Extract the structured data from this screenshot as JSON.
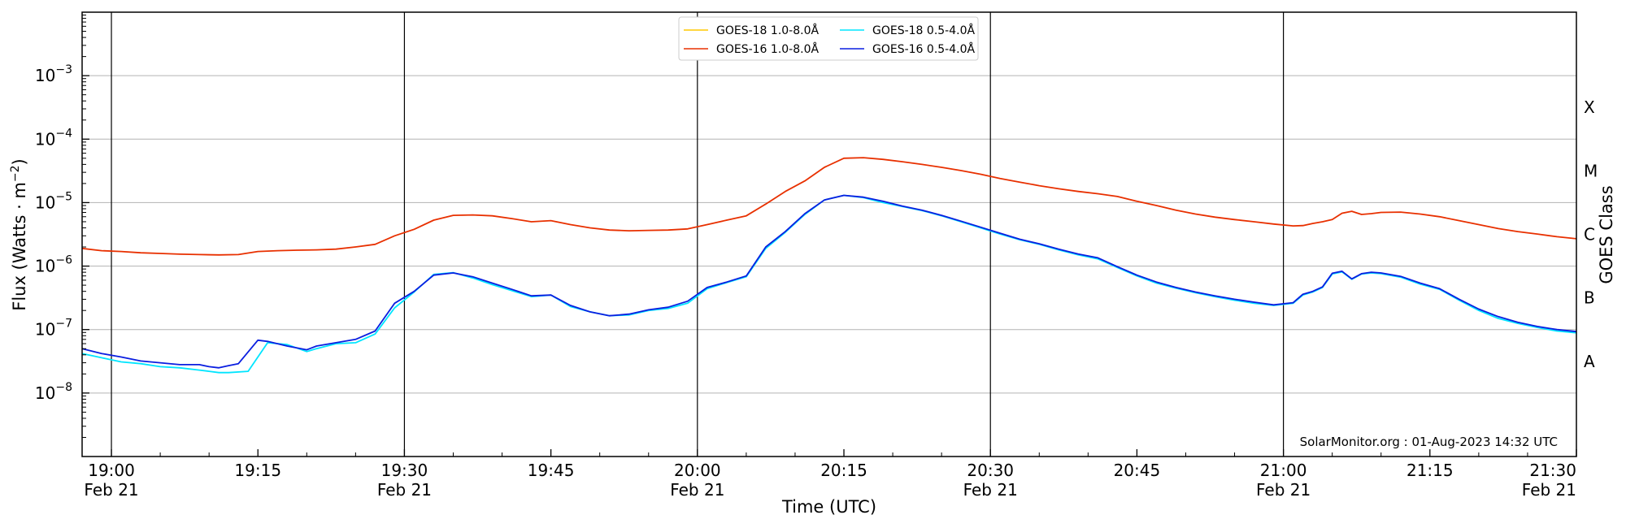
{
  "chart_data": {
    "type": "line",
    "xlabel": "Time (UTC)",
    "ylabel": "Flux (Watts · m",
    "ylabel_sup": "−2",
    "ylabel_close": ")",
    "right_label": "GOES Class",
    "scale": "log",
    "ylim": [
      1e-09,
      0.01
    ],
    "xlim": [
      "2023-02-21T18:57",
      "2023-02-21T21:30"
    ],
    "grid": "horizontal",
    "legend_position": "top-center",
    "credit": "SolarMonitor.org : 01-Aug-2023 14:32 UTC",
    "y_ticks": [
      {
        "value": 1e-08,
        "base": "10",
        "exp": "−8"
      },
      {
        "value": 1e-07,
        "base": "10",
        "exp": "−7"
      },
      {
        "value": 1e-06,
        "base": "10",
        "exp": "−6"
      },
      {
        "value": 1e-05,
        "base": "10",
        "exp": "−5"
      },
      {
        "value": 0.0001,
        "base": "10",
        "exp": "−4"
      },
      {
        "value": 0.001,
        "base": "10",
        "exp": "−3"
      }
    ],
    "x_ticks": [
      {
        "time": "19:00",
        "line1": "19:00",
        "line2": "Feb 21"
      },
      {
        "time": "19:15",
        "line1": "19:15",
        "line2": ""
      },
      {
        "time": "19:30",
        "line1": "19:30",
        "line2": "Feb 21"
      },
      {
        "time": "19:45",
        "line1": "19:45",
        "line2": ""
      },
      {
        "time": "20:00",
        "line1": "20:00",
        "line2": "Feb 21"
      },
      {
        "time": "20:15",
        "line1": "20:15",
        "line2": ""
      },
      {
        "time": "20:30",
        "line1": "20:30",
        "line2": "Feb 21"
      },
      {
        "time": "20:45",
        "line1": "20:45",
        "line2": ""
      },
      {
        "time": "21:00",
        "line1": "21:00",
        "line2": "Feb 21"
      },
      {
        "time": "21:15",
        "line1": "21:15",
        "line2": ""
      },
      {
        "time": "21:30",
        "line1": "21:30",
        "line2": "Feb 21"
      }
    ],
    "x_start_label": {
      "line1": "19:00",
      "line2": "Feb 21"
    },
    "x_end_label": {
      "line1": "21:30",
      "line2": "Feb 21"
    },
    "vertical_lines": [
      "19:00",
      "19:30",
      "20:00",
      "20:30",
      "21:00"
    ],
    "classes": [
      {
        "label": "A",
        "value": 3.16e-08
      },
      {
        "label": "B",
        "value": 3.16e-07
      },
      {
        "label": "C",
        "value": 3.16e-06
      },
      {
        "label": "M",
        "value": 3.16e-05
      },
      {
        "label": "X",
        "value": 0.000316
      }
    ],
    "series": [
      {
        "name": "GOES-18 1.0-8.0Å",
        "color": "#ffc800",
        "x": [],
        "y": []
      },
      {
        "name": "GOES-18 0.5-4.0Å",
        "color": "#00e5ff",
        "x": [
          "18:57",
          "18:59",
          "19:01",
          "19:03",
          "19:05",
          "19:07",
          "19:09",
          "19:10",
          "19:11",
          "19:12",
          "19:14",
          "19:16",
          "19:18",
          "19:20",
          "19:21",
          "19:23",
          "19:25",
          "19:27",
          "19:29",
          "19:31",
          "19:33",
          "19:35",
          "19:37",
          "19:39",
          "19:41",
          "19:43",
          "19:45",
          "19:47",
          "19:49",
          "19:51",
          "19:53",
          "19:55",
          "19:57",
          "19:59",
          "20:01",
          "20:03",
          "20:05",
          "20:07",
          "20:09",
          "20:11",
          "20:13",
          "20:15",
          "20:17",
          "20:19",
          "20:21",
          "20:23",
          "20:25",
          "20:27",
          "20:29",
          "20:31",
          "20:33",
          "20:35",
          "20:37",
          "20:39",
          "20:41",
          "20:43",
          "20:45",
          "20:47",
          "20:49",
          "20:51",
          "20:53",
          "20:55",
          "20:57",
          "20:59",
          "21:01",
          "21:02",
          "21:03",
          "21:04",
          "21:05",
          "21:06",
          "21:07",
          "21:08",
          "21:09",
          "21:10",
          "21:12",
          "21:14",
          "21:16",
          "21:18",
          "21:20",
          "21:22",
          "21:24",
          "21:26",
          "21:28",
          "21:30"
        ],
        "y": [
          4.2e-08,
          3.6e-08,
          3.1e-08,
          2.9e-08,
          2.6e-08,
          2.5e-08,
          2.3e-08,
          2.2e-08,
          2.1e-08,
          2.1e-08,
          2.2e-08,
          6.2e-08,
          5.8e-08,
          4.5e-08,
          5e-08,
          6e-08,
          6.2e-08,
          8.5e-08,
          2.2e-07,
          3.9e-07,
          7.4e-07,
          7.9e-07,
          6.5e-07,
          5.1e-07,
          4.1e-07,
          3.3e-07,
          3.5e-07,
          2.3e-07,
          1.9e-07,
          1.65e-07,
          1.7e-07,
          2e-07,
          2.15e-07,
          2.6e-07,
          4.4e-07,
          5.5e-07,
          6.8e-07,
          1.9e-06,
          3.4e-06,
          6.5e-06,
          1.1e-05,
          1.3e-05,
          1.2e-05,
          1e-05,
          8.7e-06,
          7.5e-06,
          6.2e-06,
          5e-06,
          4e-06,
          3.2e-06,
          2.6e-06,
          2.2e-06,
          1.8e-06,
          1.5e-06,
          1.3e-06,
          9.5e-07,
          7e-07,
          5.4e-07,
          4.5e-07,
          3.8e-07,
          3.3e-07,
          2.9e-07,
          2.6e-07,
          2.4e-07,
          2.6e-07,
          3.5e-07,
          3.9e-07,
          4.6e-07,
          7.5e-07,
          8.1e-07,
          6.2e-07,
          7.5e-07,
          7.8e-07,
          7.6e-07,
          6.7e-07,
          5.2e-07,
          4.3e-07,
          2.9e-07,
          2e-07,
          1.5e-07,
          1.25e-07,
          1.08e-07,
          9.5e-08,
          8.9e-08
        ]
      },
      {
        "name": "GOES-16 1.0-8.0Å",
        "color": "#e83000",
        "x": [
          "18:57",
          "18:59",
          "19:01",
          "19:03",
          "19:05",
          "19:07",
          "19:09",
          "19:11",
          "19:13",
          "19:15",
          "19:17",
          "19:19",
          "19:21",
          "19:23",
          "19:25",
          "19:27",
          "19:29",
          "19:31",
          "19:33",
          "19:35",
          "19:37",
          "19:39",
          "19:41",
          "19:43",
          "19:45",
          "19:47",
          "19:49",
          "19:51",
          "19:53",
          "19:55",
          "19:57",
          "19:59",
          "20:01",
          "20:03",
          "20:05",
          "20:07",
          "20:09",
          "20:11",
          "20:13",
          "20:15",
          "20:17",
          "20:19",
          "20:21",
          "20:23",
          "20:25",
          "20:27",
          "20:29",
          "20:31",
          "20:33",
          "20:35",
          "20:37",
          "20:39",
          "20:41",
          "20:43",
          "20:45",
          "20:47",
          "20:49",
          "20:51",
          "20:53",
          "20:55",
          "20:57",
          "20:59",
          "21:01",
          "21:02",
          "21:03",
          "21:04",
          "21:05",
          "21:06",
          "21:07",
          "21:08",
          "21:09",
          "21:10",
          "21:12",
          "21:14",
          "21:16",
          "21:18",
          "21:20",
          "21:22",
          "21:24",
          "21:26",
          "21:28",
          "21:30"
        ],
        "y": [
          1.9e-06,
          1.75e-06,
          1.7e-06,
          1.62e-06,
          1.58e-06,
          1.54e-06,
          1.52e-06,
          1.5e-06,
          1.52e-06,
          1.7e-06,
          1.75e-06,
          1.78e-06,
          1.8e-06,
          1.85e-06,
          2e-06,
          2.2e-06,
          3e-06,
          3.8e-06,
          5.3e-06,
          6.3e-06,
          6.4e-06,
          6.2e-06,
          5.6e-06,
          5e-06,
          5.2e-06,
          4.5e-06,
          4e-06,
          3.7e-06,
          3.6e-06,
          3.65e-06,
          3.7e-06,
          3.85e-06,
          4.5e-06,
          5.3e-06,
          6.2e-06,
          9.5e-06,
          1.5e-05,
          2.2e-05,
          3.6e-05,
          5e-05,
          5.1e-05,
          4.8e-05,
          4.4e-05,
          4e-05,
          3.6e-05,
          3.2e-05,
          2.8e-05,
          2.4e-05,
          2.1e-05,
          1.85e-05,
          1.65e-05,
          1.5e-05,
          1.38e-05,
          1.25e-05,
          1.05e-05,
          9e-06,
          7.6e-06,
          6.6e-06,
          5.9e-06,
          5.4e-06,
          5e-06,
          4.6e-06,
          4.3e-06,
          4.35e-06,
          4.7e-06,
          5e-06,
          5.4e-06,
          6.8e-06,
          7.3e-06,
          6.5e-06,
          6.7e-06,
          7e-06,
          7.1e-06,
          6.6e-06,
          6e-06,
          5.2e-06,
          4.5e-06,
          3.9e-06,
          3.5e-06,
          3.2e-06,
          2.9e-06,
          2.7e-06
        ]
      },
      {
        "name": "GOES-16 0.5-4.0Å",
        "color": "#0a1ee0",
        "x": [
          "18:57",
          "18:59",
          "19:01",
          "19:03",
          "19:05",
          "19:07",
          "19:09",
          "19:10",
          "19:11",
          "19:12",
          "19:13",
          "19:15",
          "19:16",
          "19:18",
          "19:20",
          "19:21",
          "19:23",
          "19:25",
          "19:27",
          "19:29",
          "19:31",
          "19:33",
          "19:35",
          "19:37",
          "19:39",
          "19:41",
          "19:43",
          "19:45",
          "19:47",
          "19:49",
          "19:51",
          "19:53",
          "19:55",
          "19:57",
          "19:59",
          "20:01",
          "20:03",
          "20:05",
          "20:07",
          "20:09",
          "20:11",
          "20:13",
          "20:15",
          "20:17",
          "20:19",
          "20:21",
          "20:23",
          "20:25",
          "20:27",
          "20:29",
          "20:31",
          "20:33",
          "20:35",
          "20:37",
          "20:39",
          "20:41",
          "20:43",
          "20:45",
          "20:47",
          "20:49",
          "20:51",
          "20:53",
          "20:55",
          "20:57",
          "20:59",
          "21:01",
          "21:02",
          "21:03",
          "21:04",
          "21:05",
          "21:06",
          "21:07",
          "21:08",
          "21:09",
          "21:10",
          "21:12",
          "21:14",
          "21:16",
          "21:18",
          "21:20",
          "21:22",
          "21:24",
          "21:26",
          "21:28",
          "21:30"
        ],
        "y": [
          5e-08,
          4.2e-08,
          3.7e-08,
          3.2e-08,
          3e-08,
          2.8e-08,
          2.8e-08,
          2.6e-08,
          2.5e-08,
          2.7e-08,
          2.9e-08,
          6.8e-08,
          6.5e-08,
          5.5e-08,
          4.8e-08,
          5.5e-08,
          6.2e-08,
          7e-08,
          9.5e-08,
          2.6e-07,
          4e-07,
          7.2e-07,
          7.8e-07,
          6.8e-07,
          5.4e-07,
          4.3e-07,
          3.4e-07,
          3.5e-07,
          2.4e-07,
          1.9e-07,
          1.65e-07,
          1.75e-07,
          2.05e-07,
          2.25e-07,
          2.8e-07,
          4.6e-07,
          5.6e-07,
          7e-07,
          2e-06,
          3.5e-06,
          6.7e-06,
          1.1e-05,
          1.3e-05,
          1.22e-05,
          1.05e-05,
          8.8e-06,
          7.6e-06,
          6.3e-06,
          5.1e-06,
          4.1e-06,
          3.3e-06,
          2.65e-06,
          2.25e-06,
          1.85e-06,
          1.55e-06,
          1.35e-06,
          9.8e-07,
          7.2e-07,
          5.6e-07,
          4.6e-07,
          3.9e-07,
          3.4e-07,
          3e-07,
          2.7e-07,
          2.45e-07,
          2.65e-07,
          3.6e-07,
          4e-07,
          4.7e-07,
          7.7e-07,
          8.3e-07,
          6.3e-07,
          7.6e-07,
          8e-07,
          7.8e-07,
          6.9e-07,
          5.4e-07,
          4.4e-07,
          3e-07,
          2.1e-07,
          1.6e-07,
          1.3e-07,
          1.12e-07,
          1e-07,
          9.3e-08
        ]
      }
    ]
  }
}
